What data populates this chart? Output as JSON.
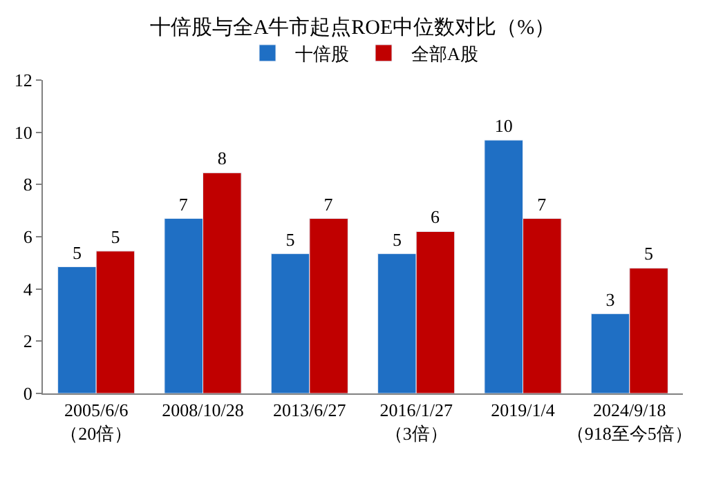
{
  "chart_data": {
    "type": "bar",
    "title": "十倍股与全A牛市起点ROE中位数对比（%）",
    "categories": [
      "2005/6/6\n（20倍）",
      "2008/10/28",
      "2013/6/27",
      "2016/1/27\n（3倍）",
      "2019/1/4",
      "2024/9/18\n（918至今5倍）"
    ],
    "series": [
      {
        "name": "十倍股",
        "color": "#1f6fc4",
        "values": [
          4.85,
          6.7,
          5.35,
          5.35,
          9.7,
          3.05
        ],
        "value_labels": [
          "5",
          "7",
          "5",
          "5",
          "10",
          "3"
        ]
      },
      {
        "name": "全部A股",
        "color": "#c00000",
        "values": [
          5.45,
          8.45,
          6.7,
          6.2,
          6.7,
          4.8
        ],
        "value_labels": [
          "5",
          "8",
          "7",
          "6",
          "7",
          "5"
        ]
      }
    ],
    "ylim": [
      0,
      12
    ],
    "yticks": [
      0,
      2,
      4,
      6,
      8,
      10,
      12
    ],
    "legend": "top"
  }
}
